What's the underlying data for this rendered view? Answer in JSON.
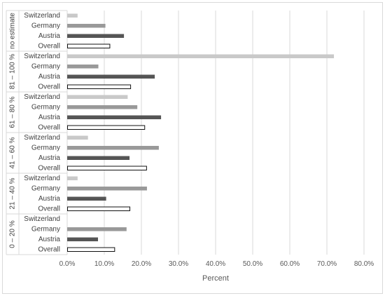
{
  "chart_data": {
    "type": "bar",
    "orientation": "horizontal",
    "xlabel": "Percent",
    "ylabel": "",
    "xlim": [
      0,
      80
    ],
    "xticks": [
      "0.0%",
      "10.0%",
      "20.0%",
      "30.0%",
      "40.0%",
      "50.0%",
      "60.0%",
      "70.0%",
      "80.0%"
    ],
    "grid": "vertical",
    "legend": "none",
    "colors": {
      "Switzerland": "#c9c9c9",
      "Germany": "#999999",
      "Austria": "#555555",
      "Overall": "#ffffff",
      "Overall_stroke": "#111111",
      "grid": "#d9d9d9",
      "axis_text": "#595959"
    },
    "groups": [
      {
        "label": "no estimate",
        "rows": [
          {
            "name": "Switzerland",
            "value": 2.8
          },
          {
            "name": "Germany",
            "value": 10.3
          },
          {
            "name": "Austria",
            "value": 15.3
          },
          {
            "name": "Overall",
            "value": 11.4
          }
        ]
      },
      {
        "label": "81 – 100 %",
        "rows": [
          {
            "name": "Switzerland",
            "value": 71.9
          },
          {
            "name": "Germany",
            "value": 8.4
          },
          {
            "name": "Austria",
            "value": 23.6
          },
          {
            "name": "Overall",
            "value": 17.0
          }
        ]
      },
      {
        "label": "61 – 80 %",
        "rows": [
          {
            "name": "Switzerland",
            "value": 16.3
          },
          {
            "name": "Germany",
            "value": 18.9
          },
          {
            "name": "Austria",
            "value": 25.3
          },
          {
            "name": "Overall",
            "value": 20.8
          }
        ]
      },
      {
        "label": "41 – 60 %",
        "rows": [
          {
            "name": "Switzerland",
            "value": 5.6
          },
          {
            "name": "Germany",
            "value": 24.7
          },
          {
            "name": "Austria",
            "value": 16.8
          },
          {
            "name": "Overall",
            "value": 21.3
          }
        ]
      },
      {
        "label": "21 – 40 %",
        "rows": [
          {
            "name": "Switzerland",
            "value": 2.8
          },
          {
            "name": "Germany",
            "value": 21.5
          },
          {
            "name": "Austria",
            "value": 10.5
          },
          {
            "name": "Overall",
            "value": 16.8
          }
        ]
      },
      {
        "label": "0 – 20 %",
        "rows": [
          {
            "name": "Switzerland",
            "value": 0.0
          },
          {
            "name": "Germany",
            "value": 16.0
          },
          {
            "name": "Austria",
            "value": 8.3
          },
          {
            "name": "Overall",
            "value": 12.7
          }
        ]
      }
    ]
  }
}
